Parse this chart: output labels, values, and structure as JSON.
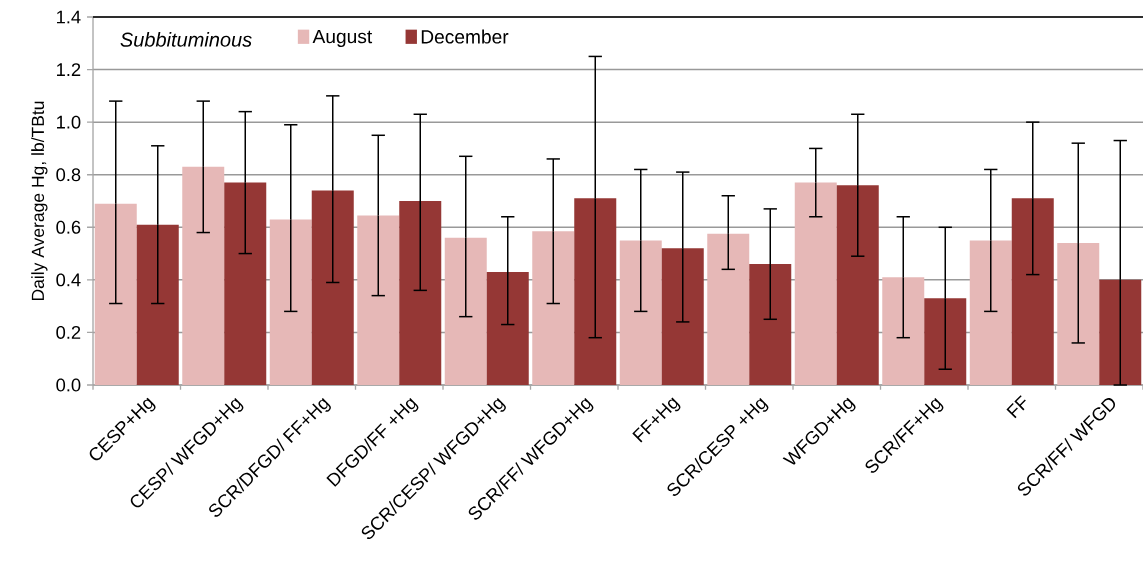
{
  "chart_data": {
    "type": "bar",
    "categories": [
      "CESP+Hg",
      "CESP/ WFGD+Hg",
      "SCR/DFGD/ FF+Hg",
      "DFGD/FF +Hg",
      "SCR/CESP/ WFGD+Hg",
      "SCR/FF/ WFGD+Hg",
      "FF+Hg",
      "SCR/CESP +Hg",
      "WFGD+Hg",
      "SCR/FF+Hg",
      "FF",
      "SCR/FF/ WFGD"
    ],
    "ylabel": "Daily Average Hg, lb/TBtu",
    "annotations": [
      "Subbituminous"
    ],
    "series": [
      {
        "name": "August",
        "color": "#e6b8b7",
        "values": [
          0.69,
          0.83,
          0.63,
          0.645,
          0.56,
          0.585,
          0.55,
          0.575,
          0.77,
          0.41,
          0.55,
          0.54
        ],
        "errors": [
          [
            0.31,
            1.08
          ],
          [
            0.58,
            1.08
          ],
          [
            0.28,
            0.99
          ],
          [
            0.34,
            0.95
          ],
          [
            0.26,
            0.87
          ],
          [
            0.31,
            0.86
          ],
          [
            0.28,
            0.82
          ],
          [
            0.44,
            0.72
          ],
          [
            0.64,
            0.9
          ],
          [
            0.18,
            0.64
          ],
          [
            0.28,
            0.82
          ],
          [
            0.16,
            0.92
          ]
        ]
      },
      {
        "name": "December",
        "color": "#953735",
        "values": [
          0.61,
          0.77,
          0.74,
          0.7,
          0.43,
          0.71,
          0.52,
          0.46,
          0.76,
          0.33,
          0.71,
          0.4
        ],
        "errors": [
          [
            0.31,
            0.91
          ],
          [
            0.5,
            1.04
          ],
          [
            0.39,
            1.1
          ],
          [
            0.36,
            1.03
          ],
          [
            0.23,
            0.64
          ],
          [
            0.18,
            1.25
          ],
          [
            0.24,
            0.81
          ],
          [
            0.25,
            0.67
          ],
          [
            0.49,
            1.03
          ],
          [
            0.06,
            0.6
          ],
          [
            0.42,
            1.0
          ],
          [
            0.0,
            0.93
          ]
        ]
      }
    ],
    "ylim": [
      0,
      1.4
    ],
    "yticks": [
      {
        "value": 0,
        "label": "0.0"
      },
      {
        "value": 0.2,
        "label": "0.2"
      },
      {
        "value": 0.4,
        "label": "0.4"
      },
      {
        "value": 0.6,
        "label": "0.6"
      },
      {
        "value": 0.8,
        "label": "0.8"
      },
      {
        "value": 1.0,
        "label": "1.0"
      },
      {
        "value": 1.2,
        "label": "1.2"
      },
      {
        "value": 1.4,
        "label": "1.4"
      }
    ],
    "grid": "y",
    "legend": "top left"
  }
}
